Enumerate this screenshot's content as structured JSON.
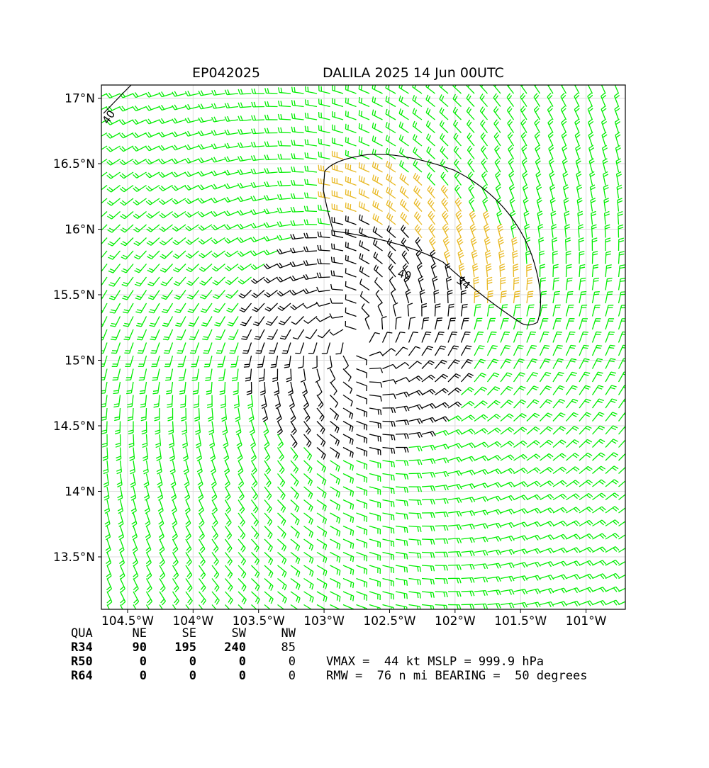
{
  "title": {
    "storm_id": "EP042025",
    "description": "DALILA 2025 14 Jun 00UTC"
  },
  "map": {
    "lon_range": [
      -104.7,
      -100.7
    ],
    "lat_range": [
      13.1,
      17.1
    ],
    "x_ticks": [
      "104.5°W",
      "104°W",
      "103.5°W",
      "103°W",
      "102.5°W",
      "102°W",
      "101.5°W",
      "101°W"
    ],
    "x_tick_values": [
      -104.5,
      -104.0,
      -103.5,
      -103.0,
      -102.5,
      -102.0,
      -101.5,
      -101.0
    ],
    "y_ticks": [
      "17°N",
      "16.5°N",
      "16°N",
      "15.5°N",
      "15°N",
      "14.5°N",
      "14°N",
      "13.5°N"
    ],
    "y_tick_values": [
      17.0,
      16.5,
      16.0,
      15.5,
      15.0,
      14.5,
      14.0,
      13.5
    ],
    "grid": true,
    "storm_center": {
      "lon": -102.75,
      "lat": 15.15
    },
    "contour_labels": [
      "34",
      "40",
      "40"
    ],
    "colors": {
      "low_wind_barbs": "#00ee00",
      "gale_barbs": "#e8b820",
      "core_barbs": "#000000",
      "contour": "#000000"
    }
  },
  "wind_table": {
    "header": [
      "QUA",
      "NE",
      "SE",
      "SW",
      "NW"
    ],
    "rows": [
      {
        "label": "R34",
        "values": [
          "90",
          "195",
          "240",
          "85"
        ]
      },
      {
        "label": "R50",
        "values": [
          "0",
          "0",
          "0",
          "0"
        ]
      },
      {
        "label": "R64",
        "values": [
          "0",
          "0",
          "0",
          "0"
        ]
      }
    ]
  },
  "summary": {
    "line1": "VMAX =  44 kt MSLP = 999.9 hPa",
    "line2": "RMW =  76 n mi BEARING =  50 degrees"
  }
}
